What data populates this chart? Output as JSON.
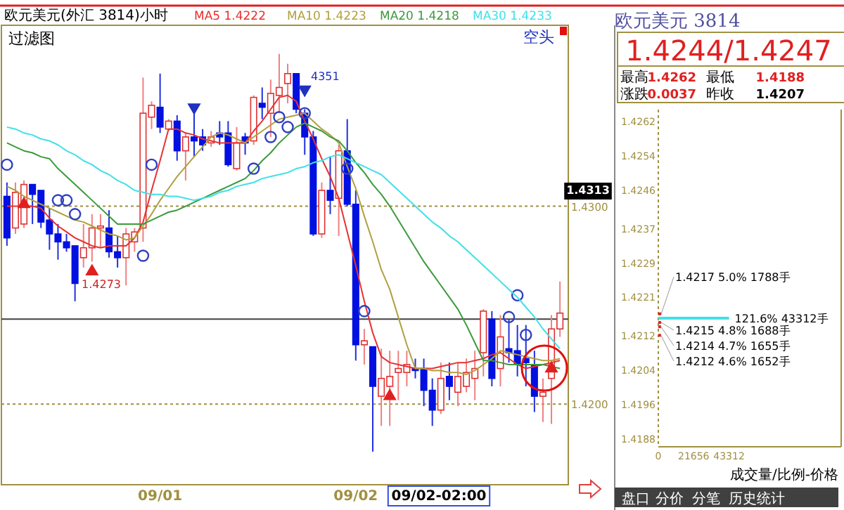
{
  "chart_data": [
    {
      "type": "candlestick",
      "title": "欧元美元(外汇 3814)小时",
      "legend": "top",
      "grid": "y",
      "categories": [
        null,
        null,
        null,
        null,
        null,
        null,
        null,
        null,
        null,
        null,
        null,
        null,
        null,
        null,
        null,
        null,
        null,
        null,
        "09/01",
        null,
        null,
        null,
        null,
        null,
        null,
        null,
        null,
        null,
        null,
        null,
        null,
        null,
        null,
        null,
        null,
        null,
        null,
        null,
        null,
        null,
        null,
        "09/02",
        null,
        null,
        null,
        null,
        null,
        null,
        null,
        null,
        null,
        null,
        null,
        null,
        null,
        null,
        null,
        null,
        null,
        null,
        null,
        null,
        null,
        null,
        null,
        null
      ],
      "ohlc": [
        [
          1.4305,
          1.4312,
          1.428,
          1.4284
        ],
        [
          1.4289,
          1.4312,
          1.4286,
          1.4307
        ],
        [
          1.4291,
          1.4313,
          1.4289,
          1.4311
        ],
        [
          1.4311,
          1.4311,
          1.4291,
          1.4306
        ],
        [
          1.4308,
          1.4308,
          1.4289,
          1.4292
        ],
        [
          1.4293,
          1.4299,
          1.4278,
          1.4286
        ],
        [
          1.4286,
          1.4291,
          1.4273,
          1.4282
        ],
        [
          1.4282,
          1.4286,
          1.4277,
          1.4279
        ],
        [
          1.428,
          1.428,
          1.4252,
          1.4261
        ],
        [
          1.4274,
          1.4291,
          1.4269,
          1.4279
        ],
        [
          1.4279,
          1.4296,
          1.4272,
          1.4289
        ],
        [
          1.4289,
          1.4296,
          1.4279,
          1.429
        ],
        [
          1.4289,
          1.4298,
          1.4274,
          1.4277
        ],
        [
          1.4277,
          1.4285,
          1.4269,
          1.4274
        ],
        [
          1.4274,
          1.4289,
          1.426,
          1.4286
        ],
        [
          1.4282,
          1.4289,
          1.4277,
          1.4287
        ],
        [
          1.4289,
          1.4365,
          1.4282,
          1.4347
        ],
        [
          1.4345,
          1.4353,
          1.4339,
          1.4351
        ],
        [
          1.435,
          1.4367,
          1.4337,
          1.434
        ],
        [
          1.4339,
          1.4344,
          1.4338,
          1.4343
        ],
        [
          1.4343,
          1.4346,
          1.4323,
          1.4328
        ],
        [
          1.4328,
          1.4337,
          1.4313,
          1.4335
        ],
        [
          1.4335,
          1.4347,
          1.4325,
          1.4333
        ],
        [
          1.4335,
          1.4339,
          1.4328,
          1.4331
        ],
        [
          1.4332,
          1.4338,
          1.433,
          1.4335
        ],
        [
          1.4337,
          1.4343,
          1.4331,
          1.4335
        ],
        [
          1.4337,
          1.4343,
          1.432,
          1.4321
        ],
        [
          1.4319,
          1.434,
          1.4318,
          1.4332
        ],
        [
          1.4335,
          1.4337,
          1.4326,
          1.4332
        ],
        [
          1.4333,
          1.4356,
          1.4331,
          1.4355
        ],
        [
          1.4352,
          1.436,
          1.4344,
          1.435
        ],
        [
          1.4347,
          1.4364,
          1.4335,
          1.4357
        ],
        [
          1.4356,
          1.4377,
          1.4347,
          1.436
        ],
        [
          1.4362,
          1.4372,
          1.4352,
          1.4367
        ],
        [
          1.4367,
          1.4367,
          1.4347,
          1.4349
        ],
        [
          1.4347,
          1.4349,
          1.4326,
          1.4335
        ],
        [
          1.4335,
          1.4338,
          1.4285,
          1.4286
        ],
        [
          1.4286,
          1.4312,
          1.4284,
          1.4308
        ],
        [
          1.4308,
          1.4325,
          1.4296,
          1.4303
        ],
        [
          1.4304,
          1.4331,
          1.4285,
          1.4328
        ],
        [
          1.4328,
          1.4344,
          1.43,
          1.4301
        ],
        [
          1.4301,
          1.4308,
          1.4222,
          1.423
        ],
        [
          1.423,
          1.4238,
          1.422,
          1.4232
        ],
        [
          1.4229,
          1.4229,
          1.4176,
          1.4209
        ],
        [
          1.4204,
          1.4228,
          1.4189,
          1.4213
        ],
        [
          1.4209,
          1.4227,
          1.4189,
          1.4214
        ],
        [
          1.4216,
          1.4227,
          1.4202,
          1.4218
        ],
        [
          1.4216,
          1.4227,
          1.4209,
          1.422
        ],
        [
          1.4218,
          1.4223,
          1.4213,
          1.4217
        ],
        [
          1.4218,
          1.4223,
          1.4199,
          1.4207
        ],
        [
          1.4207,
          1.4213,
          1.4189,
          1.4197
        ],
        [
          1.4197,
          1.4221,
          1.4195,
          1.4213
        ],
        [
          1.4214,
          1.4221,
          1.4202,
          1.4209
        ],
        [
          1.4206,
          1.4221,
          1.4199,
          1.4214
        ],
        [
          1.4209,
          1.4223,
          1.4206,
          1.4216
        ],
        [
          1.4213,
          1.4227,
          1.4202,
          1.4218
        ],
        [
          1.4226,
          1.4248,
          1.4214,
          1.4247
        ],
        [
          1.4243,
          1.4247,
          1.4209,
          1.4213
        ],
        [
          1.4218,
          1.4245,
          1.4209,
          1.4234
        ],
        [
          1.4228,
          1.4243,
          1.4221,
          1.4226
        ],
        [
          1.4227,
          1.424,
          1.4214,
          1.422
        ],
        [
          1.4223,
          1.424,
          1.4209,
          1.4221
        ],
        [
          1.422,
          1.4227,
          1.4196,
          1.4204
        ],
        [
          1.4204,
          1.4213,
          1.4191,
          1.4206
        ],
        [
          1.4213,
          1.4245,
          1.419,
          1.4238
        ],
        [
          1.4238,
          1.4262,
          1.4234,
          1.4246
        ]
      ],
      "series": [
        {
          "type": "line",
          "name": "MA5 1.4222",
          "color": "#e83030",
          "values": [
            1.43,
            1.43,
            1.43,
            1.43,
            1.4299,
            1.4294,
            1.429,
            1.4287,
            1.4284,
            1.4282,
            1.428,
            1.4279,
            1.428,
            1.428,
            1.428,
            1.4284,
            1.4292,
            1.4308,
            1.4323,
            1.4339,
            1.4339,
            1.4337,
            1.4336,
            1.4334,
            1.4333,
            1.4332,
            1.4332,
            1.4332,
            1.4332,
            1.4338,
            1.4343,
            1.4349,
            1.4355,
            1.4356,
            1.4353,
            1.4343,
            1.4334,
            1.4324,
            1.4315,
            1.4304,
            1.4287,
            1.427,
            1.4252,
            1.4236,
            1.4224,
            1.4221,
            1.422,
            1.4219,
            1.4218,
            1.4218,
            1.4218,
            1.4219,
            1.422,
            1.4221,
            1.4221,
            1.4222,
            1.4223,
            1.4225,
            1.4226,
            1.4223,
            1.422,
            1.4218,
            1.4219,
            1.422,
            1.4221,
            1.4222
          ]
        },
        {
          "type": "line",
          "name": "MA10 1.4223",
          "color": "#b0a040",
          "values": [
            1.431,
            1.4308,
            1.4305,
            1.4303,
            1.4301,
            1.4299,
            1.4297,
            1.4295,
            1.4293,
            1.4292,
            1.429,
            1.4288,
            1.4286,
            1.4285,
            1.4283,
            1.4284,
            1.429,
            1.4296,
            1.4303,
            1.4309,
            1.4315,
            1.432,
            1.4325,
            1.433,
            1.4335,
            1.4337,
            1.4336,
            1.4334,
            1.4332,
            1.4335,
            1.4338,
            1.4341,
            1.4344,
            1.4345,
            1.4346,
            1.4347,
            1.4343,
            1.4339,
            1.4336,
            1.4332,
            1.432,
            1.4309,
            1.4295,
            1.4282,
            1.4268,
            1.4258,
            1.4244,
            1.423,
            1.4218,
            1.4218,
            1.4217,
            1.4217,
            1.4216,
            1.4216,
            1.4215,
            1.4217,
            1.422,
            1.4223,
            1.4227,
            1.4226,
            1.4225,
            1.4224,
            1.4223,
            1.4222,
            1.4222,
            1.4223
          ]
        },
        {
          "type": "line",
          "name": "MA20 1.4218",
          "color": "#3c9a3c",
          "values": [
            1.4332,
            1.433,
            1.4328,
            1.4327,
            1.4325,
            1.4324,
            1.4319,
            1.4315,
            1.4311,
            1.4307,
            1.4303,
            1.4299,
            1.4295,
            1.4291,
            1.4291,
            1.4291,
            1.4291,
            1.4293,
            1.4295,
            1.4297,
            1.4298,
            1.43,
            1.4302,
            1.4304,
            1.4306,
            1.4308,
            1.431,
            1.4312,
            1.4314,
            1.4318,
            1.4323,
            1.4327,
            1.4332,
            1.4336,
            1.434,
            1.4342,
            1.434,
            1.4338,
            1.4335,
            1.4333,
            1.4328,
            1.4322,
            1.4317,
            1.4311,
            1.4306,
            1.43,
            1.4293,
            1.4286,
            1.4279,
            1.4272,
            1.4266,
            1.426,
            1.4254,
            1.4248,
            1.424,
            1.4231,
            1.4222,
            1.4222,
            1.4221,
            1.422,
            1.422,
            1.422,
            1.422,
            1.422,
            1.4219,
            1.4218
          ]
        },
        {
          "type": "scatter",
          "color": "#3040c0",
          "marker": "circle",
          "values": [
            1.4321,
            null,
            null,
            null,
            null,
            null,
            1.4303,
            1.4303,
            1.4296,
            null,
            null,
            null,
            null,
            null,
            null,
            null,
            1.4275,
            1.4321,
            null,
            null,
            null,
            null,
            null,
            null,
            null,
            null,
            null,
            null,
            null,
            1.4319,
            null,
            1.4335,
            1.4345,
            1.434,
            null,
            1.4347,
            null,
            null,
            null,
            null,
            1.4319,
            null,
            1.4247,
            null,
            null,
            null,
            null,
            null,
            null,
            null,
            null,
            null,
            null,
            null,
            null,
            null,
            null,
            null,
            null,
            1.4244,
            1.4255,
            1.4235,
            null,
            null,
            null,
            null
          ]
        },
        {
          "type": "scatter",
          "color": "#e02020",
          "marker": "triangle",
          "values": [
            null,
            null,
            1.4301,
            null,
            null,
            null,
            null,
            null,
            null,
            null,
            1.4267,
            null,
            null,
            null,
            null,
            null,
            null,
            null,
            null,
            null,
            null,
            null,
            null,
            null,
            null,
            null,
            null,
            null,
            null,
            null,
            null,
            null,
            null,
            null,
            null,
            null,
            null,
            null,
            null,
            null,
            null,
            null,
            null,
            null,
            null,
            1.4204,
            null,
            null,
            null,
            null,
            null,
            null,
            null,
            null,
            null,
            null,
            null,
            null,
            null,
            null,
            null,
            null,
            null,
            null,
            1.4218,
            null
          ]
        },
        {
          "type": "scatter",
          "color": "#2030c0",
          "marker": "triangle-down",
          "values": [
            null,
            null,
            null,
            null,
            null,
            null,
            null,
            null,
            null,
            null,
            null,
            null,
            null,
            null,
            null,
            null,
            null,
            null,
            null,
            null,
            null,
            null,
            1.435,
            null,
            null,
            null,
            null,
            null,
            null,
            null,
            null,
            null,
            null,
            null,
            null,
            1.4359,
            null,
            null,
            null,
            null,
            null,
            null,
            null,
            null,
            null,
            null,
            null,
            null,
            null,
            null,
            null,
            null,
            null,
            null,
            null,
            null,
            null,
            null,
            null,
            null,
            null,
            null,
            null,
            null,
            null,
            null
          ]
        },
        {
          "type": "line",
          "name": "MA30 1.4233",
          "color": "#40e0e8",
          "values": [
            1.434,
            1.4339,
            1.4337,
            1.4336,
            1.4334,
            1.4333,
            1.4331,
            1.4328,
            1.4326,
            1.4323,
            1.4321,
            1.4318,
            1.4316,
            1.4313,
            1.4311,
            1.4308,
            1.4307,
            1.4306,
            1.4306,
            1.4305,
            1.4305,
            1.4304,
            1.4303,
            1.4304,
            1.4305,
            1.4307,
            1.4308,
            1.431,
            1.4311,
            1.4312,
            1.4314,
            1.4315,
            1.4316,
            1.4317,
            1.4319,
            1.432,
            1.4322,
            1.4323,
            1.4325,
            1.4326,
            1.4324,
            1.4322,
            1.432,
            1.4318,
            1.4316,
            1.4312,
            1.4308,
            1.4304,
            1.43,
            1.4296,
            1.4292,
            1.4289,
            1.4285,
            1.4282,
            1.4278,
            1.4274,
            1.427,
            1.4266,
            1.4262,
            1.4258,
            1.4254,
            1.4249,
            1.4244,
            1.4238,
            1.4233,
            1.4228
          ]
        }
      ],
      "ylim": [
        1.416,
        1.439
      ],
      "yticks": [
        {
          "value": 1.43,
          "label": "1.4300"
        },
        {
          "value": 1.42,
          "label": "1.4200"
        }
      ],
      "ref_lines": [
        {
          "axis": "y",
          "value": 1.4243,
          "color": "#404040"
        }
      ],
      "annotations": [
        "过滤图",
        "空头",
        "1.4273",
        "4351",
        "1.4313",
        "09/02-02:00"
      ]
    },
    {
      "type": "other",
      "title": "欧元美元 3814",
      "annotations": [
        "1.4244/1.4247",
        "最高",
        "1.4262",
        "最低",
        "1.4188",
        "涨跌",
        "0.0037",
        "昨收",
        "1.4207"
      ]
    },
    {
      "type": "bar",
      "orientation": "horizontal",
      "xlabel": "成交量/比例-价格",
      "series": [
        {
          "x": [
            1.4217,
            1.4216,
            1.4215,
            1.4214,
            1.4212
          ],
          "values": [
            1788,
            43312,
            1688,
            1655,
            1652
          ],
          "colors": [
            "#e02020",
            "#40e0e8",
            "#e02020",
            "#e02020",
            "#e02020"
          ],
          "value_labels": [
            "1.4217 5.0% 1788手",
            "121.6% 43312手",
            "1.4215 4.8% 1688手",
            "1.4214 4.7% 1655手",
            "1.4212 4.6% 1652手"
          ]
        }
      ],
      "xlim": [
        0,
        112000
      ],
      "xticks": [
        0,
        21656,
        43312
      ],
      "ylim": [
        1.4186,
        1.4264
      ],
      "yticks": [
        1.4262,
        1.4254,
        1.4246,
        1.4237,
        1.4229,
        1.4221,
        1.4212,
        1.4204,
        1.4196,
        1.4188
      ],
      "annotations": [
        "盘口",
        "分价",
        "分笔",
        "历史统计"
      ]
    }
  ]
}
